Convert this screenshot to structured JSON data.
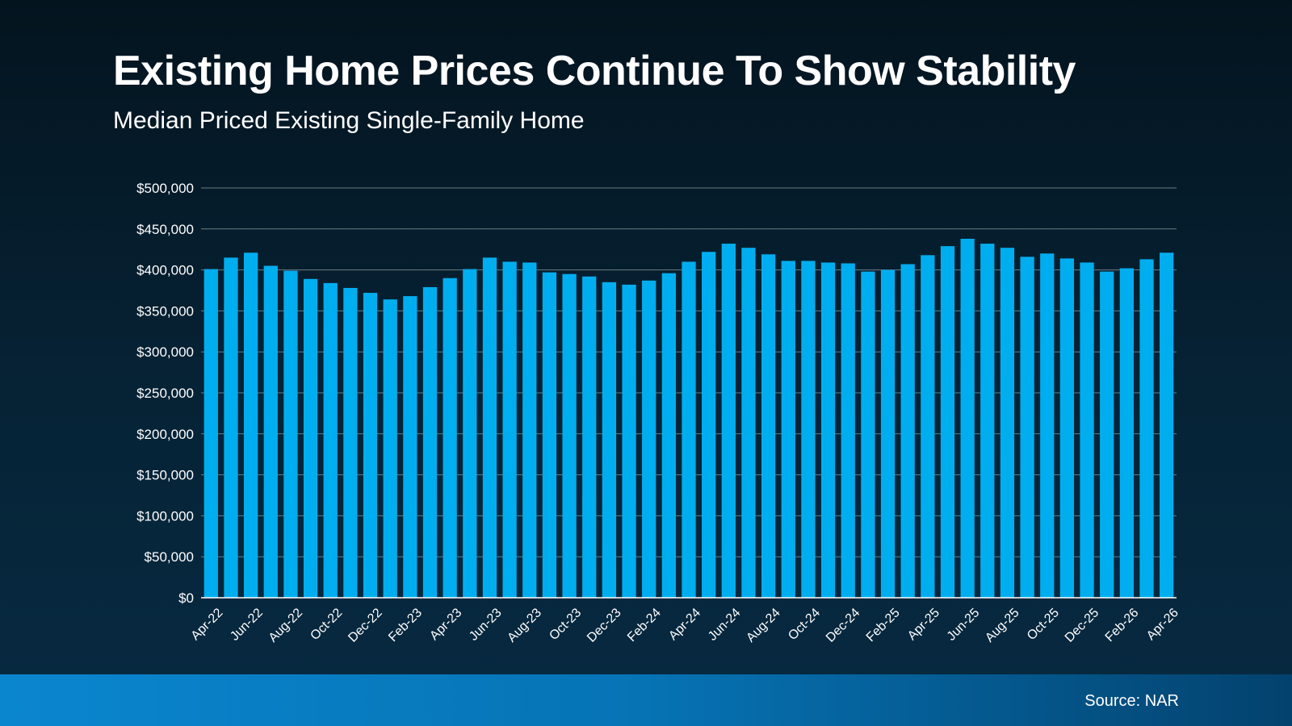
{
  "chart_data": {
    "type": "bar",
    "title": "Existing Home Prices Continue To Show Stability",
    "subtitle": "Median Priced Existing Single-Family Home",
    "categories": [
      "Apr-22",
      "May-22",
      "Jun-22",
      "Jul-22",
      "Aug-22",
      "Sep-22",
      "Oct-22",
      "Nov-22",
      "Dec-22",
      "Jan-23",
      "Feb-23",
      "Mar-23",
      "Apr-23",
      "May-23",
      "Jun-23",
      "Jul-23",
      "Aug-23",
      "Sep-23",
      "Oct-23",
      "Nov-23",
      "Dec-23",
      "Jan-24",
      "Feb-24",
      "Mar-24",
      "Apr-24",
      "May-24",
      "Jun-24",
      "Jul-24",
      "Aug-24",
      "Sep-24",
      "Oct-24",
      "Nov-24",
      "Dec-24",
      "Jan-25",
      "Feb-25",
      "Mar-25",
      "Apr-25",
      "May-25",
      "Jun-25",
      "Jul-25",
      "Aug-25",
      "Sep-25",
      "Oct-25",
      "Nov-25",
      "Dec-25",
      "Jan-26",
      "Feb-26",
      "Mar-26",
      "Apr-26"
    ],
    "x_tick_labels": [
      "Apr-22",
      "Jun-22",
      "Aug-22",
      "Oct-22",
      "Dec-22",
      "Feb-23",
      "Apr-23",
      "Jun-23",
      "Aug-23",
      "Oct-23",
      "Dec-23",
      "Feb-24",
      "Apr-24",
      "Jun-24",
      "Aug-24",
      "Oct-24",
      "Dec-24",
      "Feb-25",
      "Apr-25",
      "Jun-25",
      "Aug-25",
      "Oct-25",
      "Dec-25",
      "Feb-26",
      "Apr-26"
    ],
    "values": [
      401000,
      415000,
      421000,
      405000,
      399000,
      389000,
      384000,
      378000,
      372000,
      364000,
      368000,
      379000,
      390000,
      401000,
      415000,
      410000,
      409000,
      397000,
      395000,
      392000,
      385000,
      382000,
      387000,
      396000,
      410000,
      422000,
      432000,
      427000,
      419000,
      411000,
      411000,
      409000,
      408000,
      398000,
      400000,
      407000,
      418000,
      429000,
      438000,
      432000,
      427000,
      416000,
      420000,
      414000,
      409000,
      398000,
      402000,
      413000,
      421000
    ],
    "y_tick_labels": [
      "$0",
      "$50,000",
      "$100,000",
      "$150,000",
      "$200,000",
      "$250,000",
      "$300,000",
      "$350,000",
      "$400,000",
      "$450,000",
      "$500,000"
    ],
    "ylim": [
      0,
      500000
    ],
    "y_tick_step": 50000,
    "grid": true,
    "bar_color": "#00aeef",
    "grid_color": "#6c7d82",
    "legend": "none"
  },
  "footer": {
    "source": "Source: NAR",
    "color_left": "#0a86cf",
    "color_right": "#03426e"
  }
}
